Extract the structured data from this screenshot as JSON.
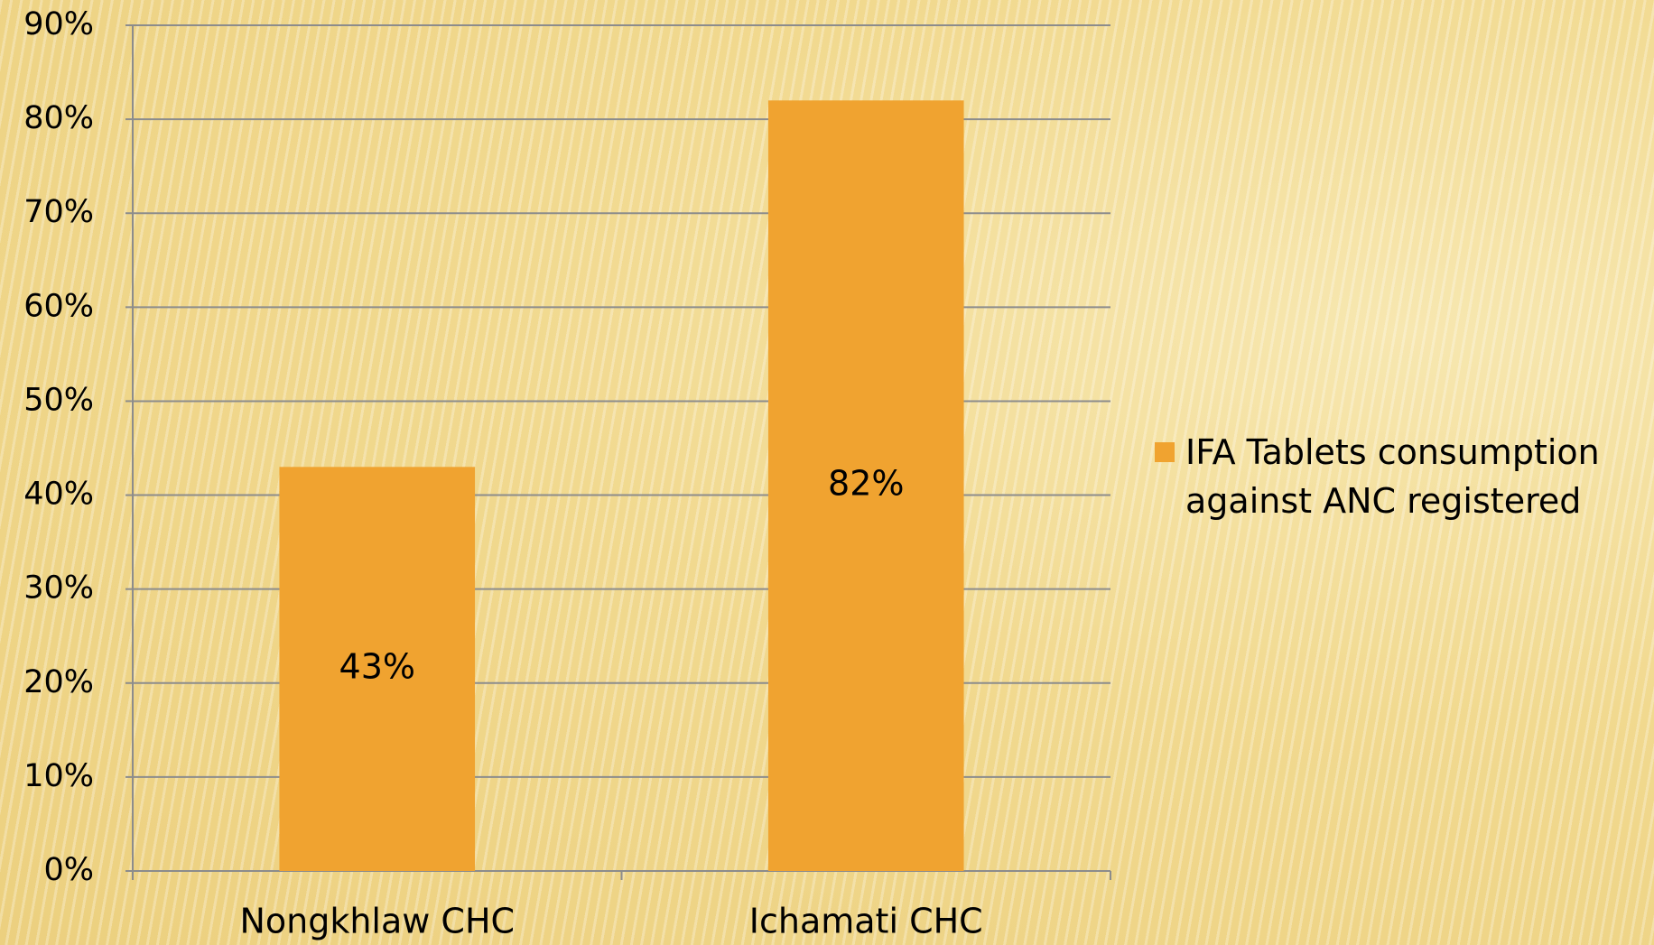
{
  "chart_data": {
    "type": "bar",
    "categories": [
      "Nongkhlaw CHC",
      "Ichamati CHC"
    ],
    "series": [
      {
        "name": "IFA Tablets consumption against ANC registered",
        "color": "#f0a330",
        "values": [
          43,
          82
        ],
        "value_labels": [
          "43%",
          "82%"
        ]
      }
    ],
    "ylim": [
      0,
      90
    ],
    "yticks": [
      {
        "value": 0,
        "label": "0%"
      },
      {
        "value": 10,
        "label": "10%"
      },
      {
        "value": 20,
        "label": "20%"
      },
      {
        "value": 30,
        "label": "30%"
      },
      {
        "value": 40,
        "label": "40%"
      },
      {
        "value": 50,
        "label": "50%"
      },
      {
        "value": 60,
        "label": "60%"
      },
      {
        "value": 70,
        "label": "70%"
      },
      {
        "value": 80,
        "label": "80%"
      },
      {
        "value": 90,
        "label": "90%"
      }
    ],
    "grid": true,
    "legend": "right"
  }
}
